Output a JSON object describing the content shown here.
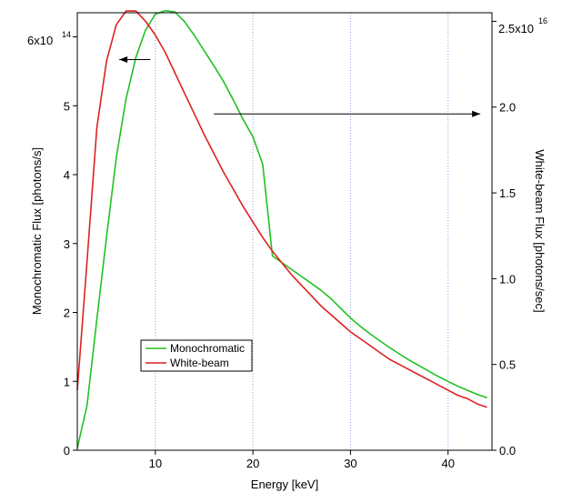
{
  "chart_data": {
    "type": "line",
    "title": "",
    "xlabel": "Energy [keV]",
    "ylabel_left": "Monochromatic Flux [photons/s]",
    "ylabel_right": "White-beam Flux [photons/sec]",
    "xlim": [
      2,
      44.5
    ],
    "ylim_left": [
      0,
      6.35
    ],
    "ylim_right": [
      0,
      2.55
    ],
    "left_scale_label": "6x10",
    "left_scale_exponent": "14",
    "right_scale_label": "2.5x10",
    "right_scale_exponent": "16",
    "x_ticks": [
      {
        "value": 10,
        "label": "10"
      },
      {
        "value": 20,
        "label": "20"
      },
      {
        "value": 30,
        "label": "30"
      },
      {
        "value": 40,
        "label": "40"
      }
    ],
    "left_ticks": [
      {
        "value": 0,
        "label": "0"
      },
      {
        "value": 1,
        "label": "1"
      },
      {
        "value": 2,
        "label": "2"
      },
      {
        "value": 3,
        "label": "3"
      },
      {
        "value": 4,
        "label": "4"
      },
      {
        "value": 5,
        "label": "5"
      },
      {
        "value": 6,
        "label": ""
      }
    ],
    "right_ticks": [
      {
        "value": 0.0,
        "label": "0.0"
      },
      {
        "value": 0.5,
        "label": "0.5"
      },
      {
        "value": 1.0,
        "label": "1.0"
      },
      {
        "value": 1.5,
        "label": "1.5"
      },
      {
        "value": 2.0,
        "label": "2.0"
      },
      {
        "value": 2.5,
        "label": ""
      }
    ],
    "grid": {
      "vertical": true,
      "horizontal": false,
      "color": "#9a9ae6",
      "style": "dotted"
    },
    "legend": {
      "placement": "lower-left"
    },
    "series": [
      {
        "name": "Monochromatic",
        "axis": "left",
        "color": "#22c022",
        "x": [
          2,
          3,
          4,
          5,
          6,
          7,
          8,
          9,
          10,
          11,
          12,
          13,
          14,
          15,
          16,
          17,
          18,
          19,
          20,
          21,
          22,
          23,
          24,
          25,
          26,
          27,
          28,
          29,
          30,
          31,
          32,
          33,
          34,
          35,
          36,
          37,
          38,
          39,
          40,
          41,
          42,
          43,
          44
        ],
        "values": [
          0.03,
          0.65,
          1.9,
          3.1,
          4.25,
          5.1,
          5.7,
          6.1,
          6.33,
          6.38,
          6.36,
          6.22,
          6.02,
          5.8,
          5.58,
          5.35,
          5.08,
          4.8,
          4.55,
          4.15,
          2.82,
          2.72,
          2.62,
          2.52,
          2.42,
          2.32,
          2.2,
          2.06,
          1.92,
          1.8,
          1.69,
          1.59,
          1.49,
          1.4,
          1.31,
          1.23,
          1.15,
          1.07,
          1.0,
          0.93,
          0.87,
          0.81,
          0.76
        ]
      },
      {
        "name": "White-beam",
        "axis": "right",
        "color": "#dd2222",
        "x": [
          2,
          3,
          4,
          5,
          6,
          7,
          8,
          9,
          10,
          11,
          12,
          13,
          14,
          15,
          16,
          17,
          18,
          19,
          20,
          21,
          22,
          23,
          24,
          25,
          26,
          27,
          28,
          29,
          30,
          31,
          32,
          33,
          34,
          35,
          36,
          37,
          38,
          39,
          40,
          41,
          42,
          43,
          44
        ],
        "values": [
          0.35,
          1.1,
          1.88,
          2.27,
          2.48,
          2.56,
          2.56,
          2.5,
          2.42,
          2.32,
          2.2,
          2.08,
          1.96,
          1.84,
          1.73,
          1.62,
          1.52,
          1.42,
          1.33,
          1.24,
          1.16,
          1.09,
          1.02,
          0.96,
          0.9,
          0.84,
          0.79,
          0.74,
          0.69,
          0.65,
          0.61,
          0.57,
          0.53,
          0.5,
          0.47,
          0.44,
          0.41,
          0.38,
          0.35,
          0.32,
          0.3,
          0.27,
          0.25
        ]
      }
    ],
    "annotations": [
      {
        "type": "arrow",
        "direction": "left",
        "axis": "left",
        "from": {
          "x": 9.5,
          "y": 5.67
        },
        "to": {
          "x": 6.3,
          "y": 5.67
        }
      },
      {
        "type": "arrow",
        "direction": "right",
        "axis": "right",
        "from": {
          "x": 16,
          "y": 1.96
        },
        "to": {
          "x": 43.3,
          "y": 1.96
        }
      }
    ]
  }
}
